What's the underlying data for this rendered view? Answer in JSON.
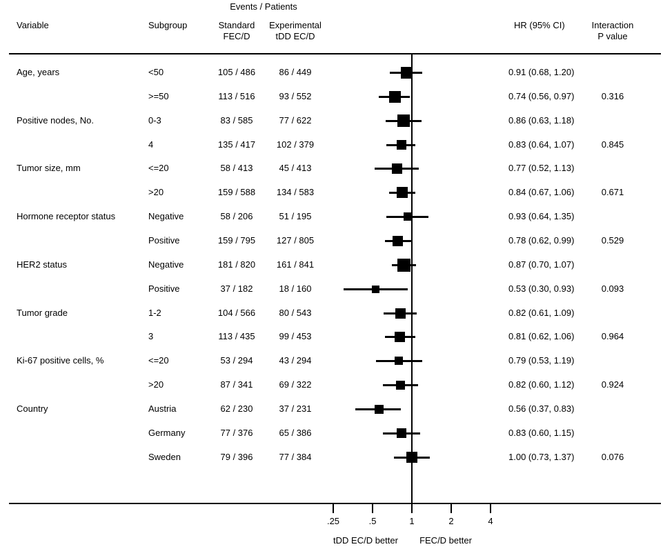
{
  "colors": {
    "text": "#000000",
    "marker": "#000000",
    "axis": "#000000",
    "background": "#ffffff"
  },
  "header": {
    "events_patients": "Events / Patients",
    "variable": "Variable",
    "subgroup": "Subgroup",
    "standard_line1": "Standard",
    "standard_line2": "FEC/D",
    "experimental_line1": "Experimental",
    "experimental_line2": "tDD EC/D",
    "hr_ci": "HR (95% CI)",
    "interaction_line1": "Interaction",
    "interaction_line2": "P value"
  },
  "chart_data": {
    "type": "forest",
    "x_scale": "log2",
    "x_ticks": [
      0.25,
      0.5,
      1,
      2,
      4
    ],
    "x_tick_labels": [
      ".25",
      ".5",
      "1",
      "2",
      "4"
    ],
    "xlim": [
      0.25,
      4
    ],
    "reference_line": 1,
    "footer_left_label": "tDD EC/D better",
    "footer_right_label": "FEC/D better",
    "grid": false,
    "rows": [
      {
        "variable": "Age, years",
        "subgroup": "<50",
        "standard": "105 / 486",
        "experimental": "86 / 449",
        "hr": 0.91,
        "ci_low": 0.68,
        "ci_high": 1.2,
        "hr_ci_label": "0.91 (0.68, 1.20)",
        "p_value": "",
        "marker_size": 17
      },
      {
        "variable": "",
        "subgroup": ">=50",
        "standard": "113 / 516",
        "experimental": "93 / 552",
        "hr": 0.74,
        "ci_low": 0.56,
        "ci_high": 0.97,
        "hr_ci_label": "0.74 (0.56, 0.97)",
        "p_value": "0.316",
        "marker_size": 17
      },
      {
        "variable": "Positive nodes, No.",
        "subgroup": "0-3",
        "standard": "83 / 585",
        "experimental": "77 / 622",
        "hr": 0.86,
        "ci_low": 0.63,
        "ci_high": 1.18,
        "hr_ci_label": "0.86 (0.63, 1.18)",
        "p_value": "",
        "marker_size": 18
      },
      {
        "variable": "",
        "subgroup": "4",
        "standard": "135 / 417",
        "experimental": "102 / 379",
        "hr": 0.83,
        "ci_low": 0.64,
        "ci_high": 1.07,
        "hr_ci_label": "0.83 (0.64, 1.07)",
        "p_value": "0.845",
        "marker_size": 14
      },
      {
        "variable": "Tumor size, mm",
        "subgroup": "<=20",
        "standard": "58 / 413",
        "experimental": "45 / 413",
        "hr": 0.77,
        "ci_low": 0.52,
        "ci_high": 1.13,
        "hr_ci_label": "0.77 (0.52, 1.13)",
        "p_value": "",
        "marker_size": 15
      },
      {
        "variable": "",
        "subgroup": ">20",
        "standard": "159 / 588",
        "experimental": "134 / 583",
        "hr": 0.84,
        "ci_low": 0.67,
        "ci_high": 1.06,
        "hr_ci_label": "0.84 (0.67, 1.06)",
        "p_value": "0.671",
        "marker_size": 16
      },
      {
        "variable": "Hormone receptor status",
        "subgroup": "Negative",
        "standard": "58 / 206",
        "experimental": "51 / 195",
        "hr": 0.93,
        "ci_low": 0.64,
        "ci_high": 1.35,
        "hr_ci_label": "0.93 (0.64, 1.35)",
        "p_value": "",
        "marker_size": 12
      },
      {
        "variable": "",
        "subgroup": "Positive",
        "standard": "159 / 795",
        "experimental": "127 / 805",
        "hr": 0.78,
        "ci_low": 0.62,
        "ci_high": 0.99,
        "hr_ci_label": "0.78 (0.62, 0.99)",
        "p_value": "0.529",
        "marker_size": 15
      },
      {
        "variable": "HER2 status",
        "subgroup": "Negative",
        "standard": "181 / 820",
        "experimental": "161 / 841",
        "hr": 0.87,
        "ci_low": 0.7,
        "ci_high": 1.07,
        "hr_ci_label": "0.87 (0.70, 1.07)",
        "p_value": "",
        "marker_size": 19
      },
      {
        "variable": "",
        "subgroup": "Positive",
        "standard": "37 / 182",
        "experimental": "18 / 160",
        "hr": 0.53,
        "ci_low": 0.3,
        "ci_high": 0.93,
        "hr_ci_label": "0.53 (0.30, 0.93)",
        "p_value": "0.093",
        "marker_size": 11
      },
      {
        "variable": "Tumor grade",
        "subgroup": "1-2",
        "standard": "104 / 566",
        "experimental": "80 / 543",
        "hr": 0.82,
        "ci_low": 0.61,
        "ci_high": 1.09,
        "hr_ci_label": "0.82 (0.61, 1.09)",
        "p_value": "",
        "marker_size": 15
      },
      {
        "variable": "",
        "subgroup": "3",
        "standard": "113 / 435",
        "experimental": "99 / 453",
        "hr": 0.81,
        "ci_low": 0.62,
        "ci_high": 1.06,
        "hr_ci_label": "0.81 (0.62, 1.06)",
        "p_value": "0.964",
        "marker_size": 15
      },
      {
        "variable": "Ki-67 positive cells, %",
        "subgroup": "<=20",
        "standard": "53 / 294",
        "experimental": "43 / 294",
        "hr": 0.79,
        "ci_low": 0.53,
        "ci_high": 1.19,
        "hr_ci_label": "0.79 (0.53, 1.19)",
        "p_value": "",
        "marker_size": 12
      },
      {
        "variable": "",
        "subgroup": ">20",
        "standard": "87 / 341",
        "experimental": "69 / 322",
        "hr": 0.82,
        "ci_low": 0.6,
        "ci_high": 1.12,
        "hr_ci_label": "0.82 (0.60, 1.12)",
        "p_value": "0.924",
        "marker_size": 13
      },
      {
        "variable": "Country",
        "subgroup": "Austria",
        "standard": "62 / 230",
        "experimental": "37 / 231",
        "hr": 0.56,
        "ci_low": 0.37,
        "ci_high": 0.83,
        "hr_ci_label": "0.56 (0.37, 0.83)",
        "p_value": "",
        "marker_size": 13
      },
      {
        "variable": "",
        "subgroup": "Germany",
        "standard": "77 / 376",
        "experimental": "65 / 386",
        "hr": 0.83,
        "ci_low": 0.6,
        "ci_high": 1.15,
        "hr_ci_label": "0.83 (0.60, 1.15)",
        "p_value": "",
        "marker_size": 14
      },
      {
        "variable": "",
        "subgroup": "Sweden",
        "standard": "79 / 396",
        "experimental": "77 / 384",
        "hr": 1.0,
        "ci_low": 0.73,
        "ci_high": 1.37,
        "hr_ci_label": "1.00 (0.73, 1.37)",
        "p_value": "0.076",
        "marker_size": 16
      }
    ]
  }
}
